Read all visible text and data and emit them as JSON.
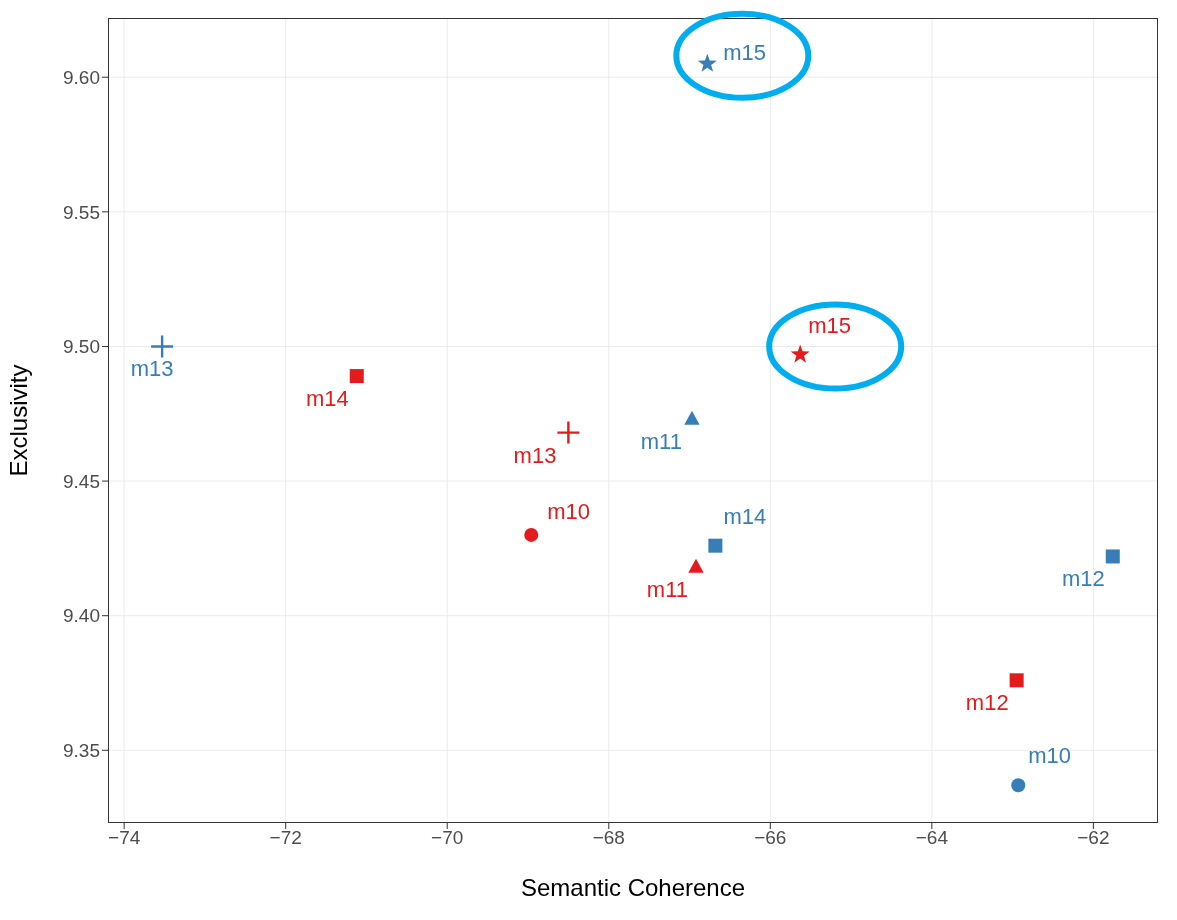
{
  "chart_data": {
    "type": "scatter",
    "xlabel": "Semantic Coherence",
    "ylabel": "Exclusivity",
    "xlim": [
      -74.2,
      -61.2
    ],
    "xticks": [
      {
        "value": -74,
        "label": "−74"
      },
      {
        "value": -72,
        "label": "−72"
      },
      {
        "value": -70,
        "label": "−70"
      },
      {
        "value": -68,
        "label": "−68"
      },
      {
        "value": -66,
        "label": "−66"
      },
      {
        "value": -64,
        "label": "−64"
      },
      {
        "value": -62,
        "label": "−62"
      }
    ],
    "ylim": [
      9.323,
      9.622
    ],
    "yticks": [
      {
        "value": 9.35,
        "label": "9.35"
      },
      {
        "value": 9.4,
        "label": "9.40"
      },
      {
        "value": 9.45,
        "label": "9.45"
      },
      {
        "value": 9.5,
        "label": "9.50"
      },
      {
        "value": 9.55,
        "label": "9.55"
      },
      {
        "value": 9.6,
        "label": "9.60"
      }
    ],
    "grid": true,
    "legend": false,
    "series": [
      {
        "name": "m10",
        "color": "#e41a1c",
        "marker": "circle",
        "x": [
          -68.96
        ],
        "values": [
          9.43
        ]
      },
      {
        "name": "m11",
        "color": "#e41a1c",
        "marker": "triangle",
        "x": [
          -66.92
        ],
        "values": [
          9.418
        ]
      },
      {
        "name": "m12",
        "color": "#e41a1c",
        "marker": "square",
        "x": [
          -62.95
        ],
        "values": [
          9.376
        ]
      },
      {
        "name": "m13",
        "color": "#e41a1c",
        "marker": "cross",
        "x": [
          -68.5
        ],
        "values": [
          9.468
        ]
      },
      {
        "name": "m14",
        "color": "#e41a1c",
        "marker": "square",
        "x": [
          -71.12
        ],
        "values": [
          9.489
        ]
      },
      {
        "name": "m15",
        "color": "#e41a1c",
        "marker": "star",
        "x": [
          -65.63
        ],
        "values": [
          9.497
        ]
      },
      {
        "name": "m10",
        "color": "#377eb8",
        "marker": "circle",
        "x": [
          -62.93
        ],
        "values": [
          9.337
        ]
      },
      {
        "name": "m11",
        "color": "#377eb8",
        "marker": "triangle",
        "x": [
          -66.97
        ],
        "values": [
          9.473
        ]
      },
      {
        "name": "m12",
        "color": "#377eb8",
        "marker": "square",
        "x": [
          -61.76
        ],
        "values": [
          9.422
        ]
      },
      {
        "name": "m13",
        "color": "#377eb8",
        "marker": "cross",
        "x": [
          -73.53
        ],
        "values": [
          9.5
        ]
      },
      {
        "name": "m14",
        "color": "#377eb8",
        "marker": "square",
        "x": [
          -66.68
        ],
        "values": [
          9.426
        ]
      },
      {
        "name": "m15",
        "color": "#377eb8",
        "marker": "star",
        "x": [
          -66.78
        ],
        "values": [
          9.605
        ]
      }
    ]
  }
}
